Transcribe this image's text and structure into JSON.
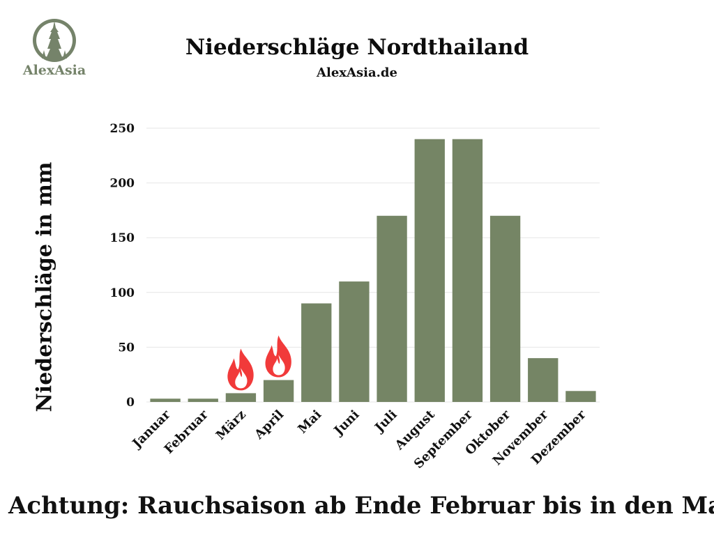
{
  "logo": {
    "text": "AlexAsia"
  },
  "title": "Niederschläge Nordthailand",
  "subtitle": "AlexAsia.de",
  "note": "Achtung: Rauchsaison ab Ende Februar bis in den Mai!",
  "colors": {
    "bar": "#758565",
    "grid": "#e6e6e6",
    "logo": "#75836a",
    "fire": "#f13a3a"
  },
  "chart_data": {
    "type": "bar",
    "title": "Niederschläge Nordthailand",
    "xlabel": "",
    "ylabel": "Niederschläge in mm",
    "ylim": [
      0,
      250
    ],
    "yticks": [
      0,
      50,
      100,
      150,
      200,
      250
    ],
    "grid": true,
    "categories": [
      "Januar",
      "Februar",
      "März",
      "April",
      "Mai",
      "Juni",
      "Juli",
      "August",
      "September",
      "Oktober",
      "November",
      "Dezember"
    ],
    "values": [
      3,
      3,
      8,
      20,
      90,
      110,
      170,
      240,
      240,
      170,
      40,
      10
    ],
    "annotations": [
      {
        "category": "März",
        "icon": "fire-icon"
      },
      {
        "category": "April",
        "icon": "fire-icon"
      }
    ]
  }
}
